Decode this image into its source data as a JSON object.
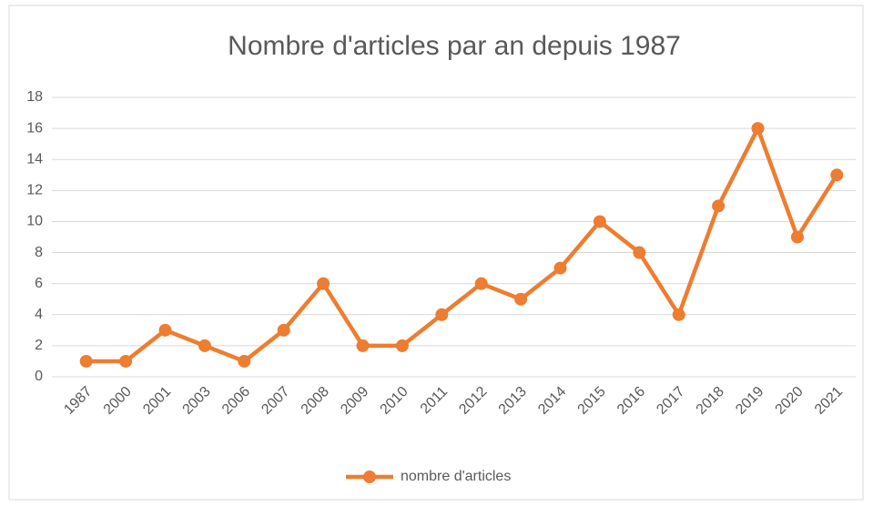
{
  "chart_data": {
    "type": "line",
    "title": "Nombre d'articles par an depuis 1987",
    "categories": [
      "1987",
      "2000",
      "2001",
      "2003",
      "2006",
      "2007",
      "2008",
      "2009",
      "2010",
      "2011",
      "2012",
      "2013",
      "2014",
      "2015",
      "2016",
      "2017",
      "2018",
      "2019",
      "2020",
      "2021"
    ],
    "series": [
      {
        "name": "nombre d'articles",
        "color": "#ed7d31",
        "values": [
          1,
          1,
          3,
          2,
          1,
          3,
          6,
          2,
          2,
          4,
          6,
          5,
          7,
          10,
          8,
          4,
          11,
          16,
          9,
          13
        ]
      }
    ],
    "ylim": [
      0,
      18
    ],
    "yticks": [
      0,
      2,
      4,
      6,
      8,
      10,
      12,
      14,
      16,
      18
    ],
    "grid": true,
    "legend": "bottom"
  }
}
